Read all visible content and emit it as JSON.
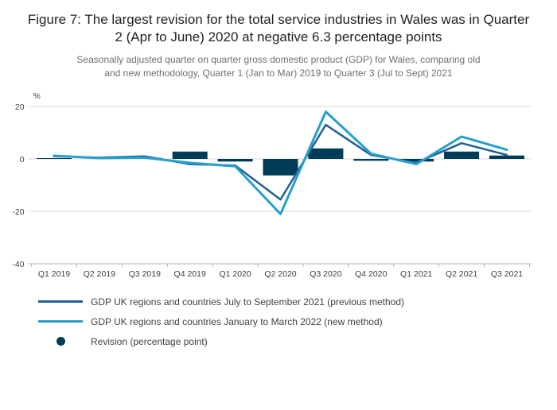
{
  "figure": {
    "title": "Figure 7: The largest revision for the total service industries in Wales was in Quarter 2 (Apr to June) 2020 at negative 6.3 percentage points",
    "subtitle": "Seasonally adjusted quarter on quarter gross domestic product (GDP) for Wales, comparing old and new methodology, Quarter 1 (Jan to Mar) 2019 to Quarter 3 (Jul to Sept) 2021"
  },
  "chart_data": {
    "type": "combo",
    "categories": [
      "Q1 2019",
      "Q2 2019",
      "Q3 2019",
      "Q4 2019",
      "Q1 2020",
      "Q2 2020",
      "Q3 2020",
      "Q4 2020",
      "Q1 2021",
      "Q2 2021",
      "Q3 2021"
    ],
    "series": [
      {
        "name": "GDP UK regions and countries July to September 2021 (previous method)",
        "type": "line",
        "color": "#206095",
        "values": [
          1.0,
          0.5,
          1.0,
          -2.0,
          -2.5,
          -15.5,
          13.0,
          1.5,
          -1.5,
          6.0,
          1.5
        ]
      },
      {
        "name": "GDP UK regions and countries January to March 2022 (new method)",
        "type": "line",
        "color": "#27a0cc",
        "values": [
          1.2,
          0.3,
          0.5,
          -1.5,
          -2.8,
          -21.0,
          18.0,
          2.0,
          -2.0,
          8.5,
          3.5
        ]
      },
      {
        "name": "Revision (percentage point)",
        "type": "bar",
        "color": "#003c57",
        "values": [
          0.3,
          0.0,
          0.4,
          2.8,
          -1.0,
          -6.3,
          4.0,
          -0.7,
          -1.0,
          2.8,
          1.3
        ]
      }
    ],
    "title": "",
    "xlabel": "",
    "ylabel": "%",
    "yticks": [
      20,
      0,
      -20,
      -40
    ],
    "ylim": [
      -40,
      25
    ],
    "grid": true,
    "legend_position": "bottom"
  },
  "colors": {
    "grid": "#d9d9d9",
    "axis": "#b3b3b3",
    "tick_text": "#414042"
  }
}
